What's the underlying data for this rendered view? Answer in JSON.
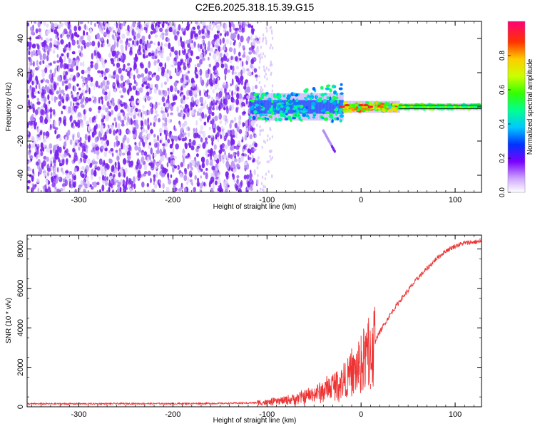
{
  "chart_data": [
    {
      "type": "heatmap",
      "title": "C2E6.2025.318.15.39.G15",
      "xlabel": "Height of straight line (km)",
      "ylabel": "Frequency (Hz)",
      "xlim": [
        -355,
        128
      ],
      "ylim": [
        -50,
        50
      ],
      "x_ticks": [
        "-300",
        "-200",
        "-100",
        "0",
        "100"
      ],
      "x_tick_values": [
        -300,
        -200,
        -100,
        0,
        100
      ],
      "y_ticks": [
        "-40",
        "-20",
        "0",
        "20",
        "40"
      ],
      "y_tick_values": [
        -40,
        -20,
        0,
        20,
        40
      ],
      "colorbar": {
        "label": "Normalized spectral amplitude",
        "range": [
          0,
          1
        ],
        "ticks": [
          "0.0",
          "0.2",
          "0.4",
          "0.6",
          "0.8"
        ],
        "tick_values": [
          0.0,
          0.2,
          0.4,
          0.6,
          0.8
        ]
      },
      "features": [
        {
          "name": "noise-region",
          "x_range": [
            -355,
            -110
          ],
          "y_range": [
            -50,
            50
          ],
          "amplitude": 0.08
        },
        {
          "name": "signal-band",
          "x_range": [
            -118,
            128
          ],
          "center_hz": 0,
          "amplitude_range": [
            0.25,
            1.0
          ]
        },
        {
          "name": "secondary-trace",
          "x_range": [
            -40,
            -28
          ],
          "y_range": [
            -14,
            -26
          ],
          "amplitude": 0.1
        }
      ]
    },
    {
      "type": "line",
      "xlabel": "Height of straight line (km)",
      "ylabel": "SNR (10 * v/v)",
      "xlim": [
        -355,
        128
      ],
      "ylim": [
        0,
        8700
      ],
      "x_ticks": [
        "-300",
        "-200",
        "-100",
        "0",
        "100"
      ],
      "x_tick_values": [
        -300,
        -200,
        -100,
        0,
        100
      ],
      "y_ticks": [
        "0",
        "2000",
        "4000",
        "6000",
        "8000"
      ],
      "y_tick_values": [
        0,
        2000,
        4000,
        6000,
        8000
      ],
      "series": [
        {
          "name": "SNR",
          "color": "#ee3333",
          "x": [
            -355,
            -300,
            -250,
            -200,
            -150,
            -120,
            -100,
            -80,
            -60,
            -40,
            -30,
            -20,
            -10,
            0,
            10,
            20,
            30,
            40,
            50,
            60,
            70,
            80,
            90,
            100,
            110,
            120,
            128
          ],
          "values": [
            150,
            150,
            160,
            160,
            170,
            190,
            220,
            320,
            500,
            800,
            1050,
            1300,
            1600,
            2100,
            2900,
            3800,
            4600,
            5300,
            5900,
            6500,
            7000,
            7500,
            7900,
            8150,
            8300,
            8350,
            8380
          ]
        }
      ],
      "spikes": [
        {
          "x": -10,
          "value": 2950
        },
        {
          "x": -8,
          "value": 2500
        },
        {
          "x": 0,
          "value": 3600
        },
        {
          "x": 8,
          "value": 4500
        },
        {
          "x": 12,
          "value": 4000
        },
        {
          "x": 10,
          "value": 900
        }
      ]
    }
  ]
}
